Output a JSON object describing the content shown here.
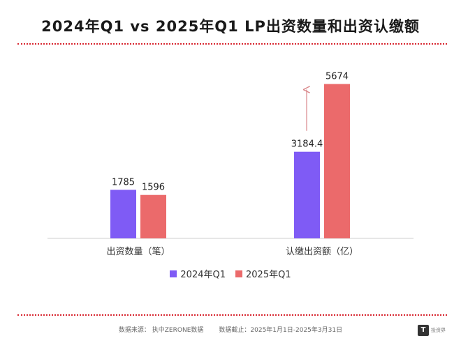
{
  "header": {
    "title": "2024年Q1 vs 2025年Q1 LP出资数量和出资认缴额"
  },
  "chart_data": {
    "type": "bar",
    "categories": [
      "出资数量（笔）",
      "认缴出资额（亿）"
    ],
    "series": [
      {
        "name": "2024年Q1",
        "values": [
          1785,
          3184.4
        ],
        "labels": [
          "1785",
          "3184.4"
        ],
        "color": "#7f5bf5"
      },
      {
        "name": "2025年Q1",
        "values": [
          1596,
          5674
        ],
        "labels": [
          "1596",
          "5674"
        ],
        "color": "#eb6a6b"
      }
    ],
    "ylim": [
      0,
      6200
    ],
    "title": "2024年Q1 vs 2025年Q1 LP出资数量和出资认缴额",
    "xlabel": "",
    "ylabel": "",
    "legend_position": "bottom-center",
    "grid": false,
    "annotation_arrow_color": "#d9878a"
  },
  "footer": {
    "source": "数据来源：  执中ZERONE数据",
    "cutoff": "数据截止：2025年1月1日-2025年3月31日"
  },
  "logo": {
    "mark": "T",
    "text": "投资界"
  }
}
